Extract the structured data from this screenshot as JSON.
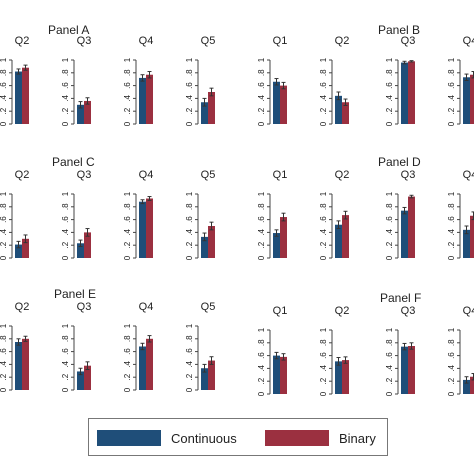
{
  "colors": {
    "continuous": "#1f4e79",
    "binary": "#9b3040",
    "errorbar": "#333333",
    "axis": "#444444"
  },
  "legend": {
    "continuous": "Continuous",
    "binary": "Binary",
    "placement": "bottom-center"
  },
  "chart_data": [
    {
      "panel": "Panel A",
      "type": "bar",
      "ylim": [
        0,
        1
      ],
      "yticks": [
        "0",
        ".2",
        ".4",
        ".6",
        ".8",
        "1"
      ],
      "grid": false,
      "subplots": [
        {
          "label": "Q2",
          "values": [
            0.82,
            0.88
          ],
          "errors": [
            0.04,
            0.04
          ]
        },
        {
          "label": "Q3",
          "values": [
            0.3,
            0.36
          ],
          "errors": [
            0.05,
            0.05
          ]
        },
        {
          "label": "Q4",
          "values": [
            0.72,
            0.77
          ],
          "errors": [
            0.05,
            0.05
          ]
        },
        {
          "label": "Q5",
          "values": [
            0.34,
            0.5
          ],
          "errors": [
            0.06,
            0.06
          ]
        }
      ]
    },
    {
      "panel": "Panel B",
      "type": "bar",
      "ylim": [
        0,
        1
      ],
      "yticks": [
        "0",
        ".2",
        ".4",
        ".6",
        ".8",
        "1"
      ],
      "grid": false,
      "subplots": [
        {
          "label": "Q1",
          "values": [
            0.66,
            0.6
          ],
          "errors": [
            0.05,
            0.05
          ]
        },
        {
          "label": "Q2",
          "values": [
            0.44,
            0.34
          ],
          "errors": [
            0.06,
            0.05
          ]
        },
        {
          "label": "Q3",
          "values": [
            0.96,
            0.98
          ],
          "errors": [
            0.02,
            0.01
          ]
        },
        {
          "label": "Q4",
          "values": [
            0.73,
            0.77
          ],
          "errors": [
            0.05,
            0.05
          ]
        }
      ]
    },
    {
      "panel": "Panel C",
      "type": "bar",
      "ylim": [
        0,
        1
      ],
      "yticks": [
        "0",
        ".2",
        ".4",
        ".6",
        ".8",
        "1"
      ],
      "grid": false,
      "subplots": [
        {
          "label": "Q2",
          "values": [
            0.21,
            0.3
          ],
          "errors": [
            0.05,
            0.06
          ]
        },
        {
          "label": "Q3",
          "values": [
            0.23,
            0.4
          ],
          "errors": [
            0.05,
            0.06
          ]
        },
        {
          "label": "Q4",
          "values": [
            0.88,
            0.93
          ],
          "errors": [
            0.03,
            0.03
          ]
        },
        {
          "label": "Q5",
          "values": [
            0.33,
            0.5
          ],
          "errors": [
            0.06,
            0.06
          ]
        }
      ]
    },
    {
      "panel": "Panel D",
      "type": "bar",
      "ylim": [
        0,
        1
      ],
      "yticks": [
        "0",
        ".2",
        ".4",
        ".6",
        ".8",
        "1"
      ],
      "grid": false,
      "subplots": [
        {
          "label": "Q1",
          "values": [
            0.39,
            0.64
          ],
          "errors": [
            0.05,
            0.06
          ]
        },
        {
          "label": "Q2",
          "values": [
            0.52,
            0.67
          ],
          "errors": [
            0.06,
            0.06
          ]
        },
        {
          "label": "Q3",
          "values": [
            0.74,
            0.96
          ],
          "errors": [
            0.05,
            0.02
          ]
        },
        {
          "label": "Q4",
          "values": [
            0.44,
            0.66
          ],
          "errors": [
            0.06,
            0.06
          ]
        }
      ]
    },
    {
      "panel": "Panel E",
      "type": "bar",
      "ylim": [
        0,
        1
      ],
      "yticks": [
        "0",
        ".2",
        ".4",
        ".6",
        ".8",
        "1"
      ],
      "grid": false,
      "subplots": [
        {
          "label": "Q2",
          "values": [
            0.75,
            0.8
          ],
          "errors": [
            0.05,
            0.04
          ]
        },
        {
          "label": "Q3",
          "values": [
            0.29,
            0.38
          ],
          "errors": [
            0.05,
            0.06
          ]
        },
        {
          "label": "Q4",
          "values": [
            0.68,
            0.8
          ],
          "errors": [
            0.05,
            0.05
          ]
        },
        {
          "label": "Q5",
          "values": [
            0.34,
            0.46
          ],
          "errors": [
            0.06,
            0.06
          ]
        }
      ]
    },
    {
      "panel": "Panel F",
      "type": "bar",
      "ylim": [
        0,
        1
      ],
      "yticks": [
        "0",
        ".2",
        ".4",
        ".6",
        ".8",
        "1"
      ],
      "grid": false,
      "subplots": [
        {
          "label": "Q1",
          "values": [
            0.6,
            0.58
          ],
          "errors": [
            0.05,
            0.05
          ]
        },
        {
          "label": "Q2",
          "values": [
            0.51,
            0.53
          ],
          "errors": [
            0.06,
            0.05
          ]
        },
        {
          "label": "Q3",
          "values": [
            0.74,
            0.75
          ],
          "errors": [
            0.05,
            0.05
          ]
        },
        {
          "label": "Q4",
          "values": [
            0.22,
            0.27
          ],
          "errors": [
            0.05,
            0.05
          ]
        }
      ]
    }
  ]
}
